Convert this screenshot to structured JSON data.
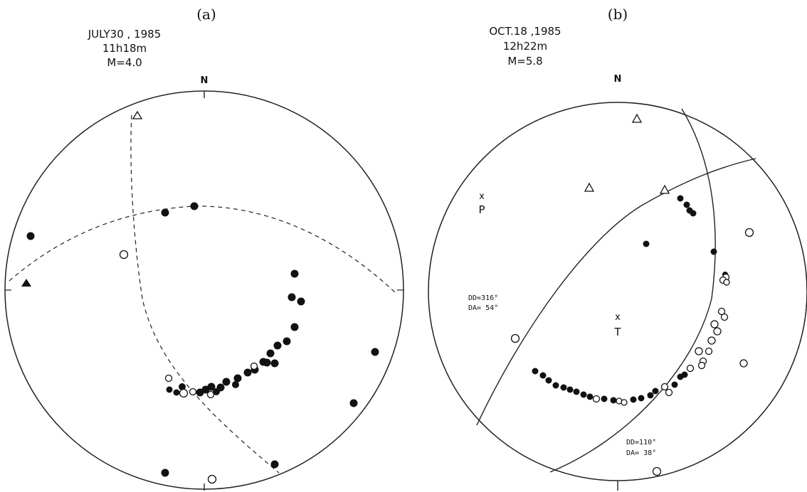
{
  "panel_a": {
    "label": "(a)",
    "date": "JULY30 , 1985",
    "time": "11h18m",
    "magnitude": "M=4.0",
    "north": "N"
  },
  "panel_b": {
    "label": "(b)",
    "date": "OCT.18 ,1985",
    "time": "12h22m",
    "magnitude": "M=5.8",
    "north": "N",
    "p_axis_mark": "x",
    "p_axis_label": "P",
    "t_axis_mark": "x",
    "t_axis_label": "T",
    "plane1_dd": "DD=316°",
    "plane1_da": "DA= 54°",
    "plane2_dd": "DD=110°",
    "plane2_da": "DA= 38°"
  }
}
